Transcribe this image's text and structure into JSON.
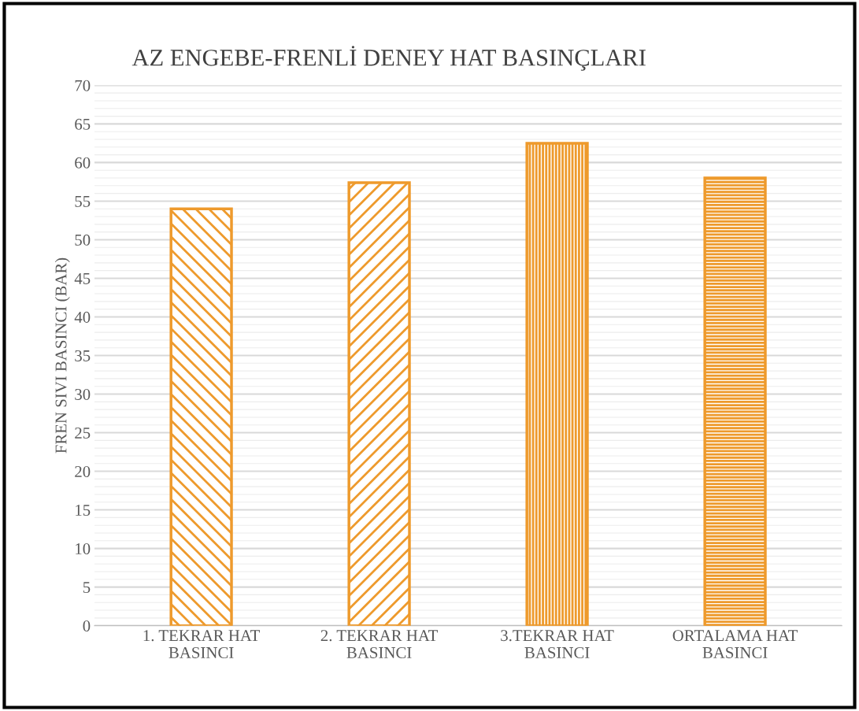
{
  "chart_data": {
    "type": "bar",
    "title": "AZ ENGEBE-FRENLİ DENEY HAT BASINÇLARI",
    "ylabel": "FREN SIVI BASINCI (BAR)",
    "categories": [
      "1. TEKRAR HAT\nBASINCI",
      "2. TEKRAR HAT\nBASINCI",
      "3.TEKRAR HAT\nBASINCI",
      "ORTALAMA HAT\nBASINCI"
    ],
    "values": [
      54,
      57.4,
      62.5,
      58
    ],
    "color": "#ee9a2c",
    "ylim": [
      0,
      70
    ],
    "yticks": [
      0,
      5,
      10,
      15,
      20,
      25,
      30,
      35,
      40,
      45,
      50,
      55,
      60,
      65,
      70
    ],
    "grid": "y"
  }
}
